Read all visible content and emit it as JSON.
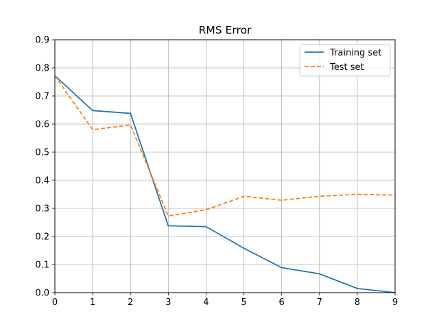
{
  "chart_data": {
    "type": "line",
    "title": "RMS Error",
    "xlabel": "",
    "ylabel": "",
    "x": [
      0,
      1,
      2,
      3,
      4,
      5,
      6,
      7,
      8,
      9
    ],
    "xlim": [
      0,
      9
    ],
    "ylim": [
      0,
      0.9
    ],
    "xticks": [
      "0",
      "1",
      "2",
      "3",
      "4",
      "5",
      "6",
      "7",
      "8",
      "9"
    ],
    "yticks": [
      "0.0",
      "0.1",
      "0.2",
      "0.3",
      "0.4",
      "0.5",
      "0.6",
      "0.7",
      "0.8",
      "0.9"
    ],
    "grid": true,
    "legend_position": "top-right",
    "series": [
      {
        "name": "Training set",
        "style": "solid",
        "color": "#1f77b4",
        "values": [
          0.772,
          0.648,
          0.638,
          0.238,
          0.235,
          0.158,
          0.089,
          0.067,
          0.015,
          0.0
        ]
      },
      {
        "name": "Test set",
        "style": "dashed",
        "color": "#ff7f0e",
        "values": [
          0.772,
          0.58,
          0.597,
          0.273,
          0.295,
          0.343,
          0.329,
          0.343,
          0.35,
          0.347
        ]
      }
    ]
  }
}
